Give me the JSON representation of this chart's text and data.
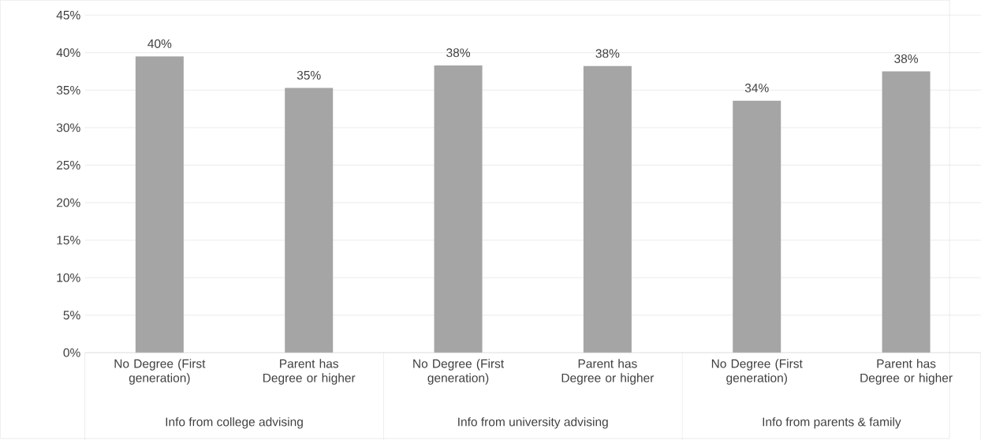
{
  "chart_data": {
    "type": "bar",
    "categories": [
      "No Degree (First generation)",
      "Parent has Degree or higher",
      "No Degree (First generation)",
      "Parent has Degree or higher",
      "No Degree (First generation)",
      "Parent has Degree or higher"
    ],
    "values": [
      39.5,
      35.3,
      38.3,
      38.2,
      33.6,
      37.5
    ],
    "value_labels": [
      "40%",
      "35%",
      "38%",
      "38%",
      "34%",
      "38%"
    ],
    "color": "#a5a5a5",
    "ylim": [
      0,
      45
    ],
    "yticks": [
      {
        "value": 0,
        "label": "0%"
      },
      {
        "value": 5,
        "label": "5%"
      },
      {
        "value": 10,
        "label": "10%"
      },
      {
        "value": 15,
        "label": "15%"
      },
      {
        "value": 20,
        "label": "20%"
      },
      {
        "value": 25,
        "label": "25%"
      },
      {
        "value": 30,
        "label": "30%"
      },
      {
        "value": 35,
        "label": "35%"
      },
      {
        "value": 40,
        "label": "40%"
      },
      {
        "value": 45,
        "label": "45%"
      }
    ],
    "grid": "y",
    "annotations": [
      "Info from college advising",
      "Info from university advising",
      "Info from parents & family"
    ]
  }
}
